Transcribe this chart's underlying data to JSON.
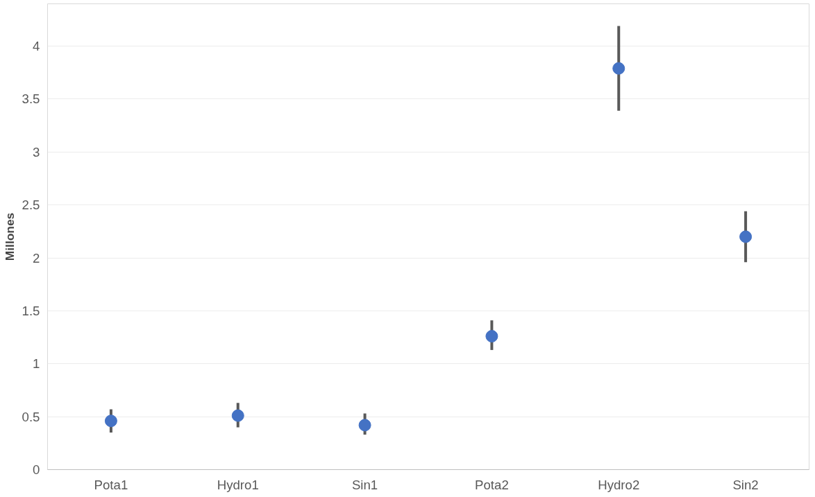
{
  "chart_data": {
    "type": "scatter",
    "ylabel": "Millones",
    "categories": [
      "Pota1",
      "Hydro1",
      "Sin1",
      "Pota2",
      "Hydro2",
      "Sin2"
    ],
    "values": [
      0.46,
      0.51,
      0.42,
      1.26,
      3.79,
      2.2
    ],
    "errors": [
      [
        0.35,
        0.57
      ],
      [
        0.4,
        0.63
      ],
      [
        0.33,
        0.53
      ],
      [
        1.13,
        1.41
      ],
      [
        3.39,
        4.19
      ],
      [
        1.96,
        2.44
      ]
    ],
    "color": "#4472c4",
    "marker": "circle",
    "grid": "y",
    "ylim": [
      0,
      4.4
    ],
    "yticks": [
      0,
      0.5,
      1,
      1.5,
      2,
      2.5,
      3,
      3.5,
      4
    ]
  }
}
